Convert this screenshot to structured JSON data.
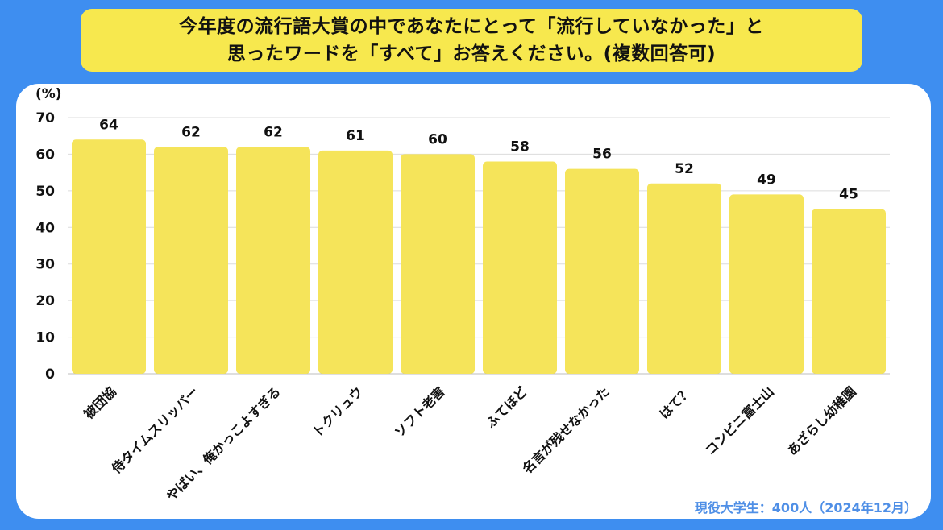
{
  "title": {
    "line1": "今年度の流行語大賞の中であなたにとって「流行していなかった」と",
    "line2": "思ったワードを「すべて」お答えください。(複数回答可)"
  },
  "footer_note": "現役大学生：400人（2024年12月）",
  "colors": {
    "background": "#3e8ef0",
    "bar": "#f5e45a",
    "title_bg": "#f7e84e",
    "footer_text": "#4f8fe6"
  },
  "chart_data": {
    "type": "bar",
    "unit_label": "(%)",
    "categories": [
      "被団協",
      "侍タイムスリッパー",
      "やばい、俺かっこよすぎる",
      "トクリュウ",
      "ソフト老害",
      "ふてほど",
      "名言が残せなかった",
      "はて？",
      "コンビニ富士山",
      "あざらし幼稚園"
    ],
    "values": [
      64,
      62,
      62,
      61,
      60,
      58,
      56,
      52,
      49,
      45
    ],
    "ylim": [
      0,
      70
    ],
    "yticks": [
      0,
      10,
      20,
      30,
      40,
      50,
      60,
      70
    ],
    "grid": true,
    "data_labels": true
  }
}
